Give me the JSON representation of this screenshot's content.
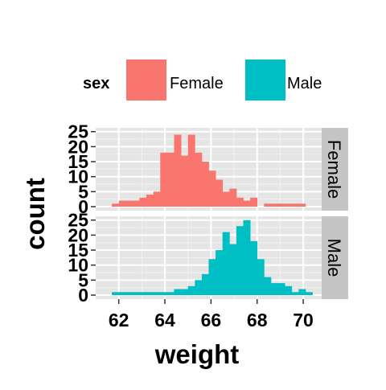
{
  "chart_data": {
    "type": "bar",
    "subtype": "histogram-faceted",
    "title": "",
    "xlabel": "weight",
    "ylabel": "count",
    "xlim": [
      61.0,
      70.8
    ],
    "ylim": [
      0,
      26
    ],
    "x_ticks": [
      62,
      64,
      66,
      68,
      70
    ],
    "y_ticks": [
      0,
      5,
      10,
      15,
      20,
      25
    ],
    "bin_width": 0.3,
    "grid": true,
    "legend": {
      "title": "sex",
      "position": "top",
      "entries": [
        {
          "label": "Female",
          "color": "#F8766D"
        },
        {
          "label": "Male",
          "color": "#00BFC4"
        }
      ]
    },
    "facets": [
      {
        "strip_label": "Female",
        "series": "Female",
        "color": "#F8766D",
        "bins": [
          {
            "x0": 61.7,
            "x1": 62.0,
            "count": 1
          },
          {
            "x0": 62.0,
            "x1": 62.3,
            "count": 2
          },
          {
            "x0": 62.3,
            "x1": 62.6,
            "count": 2
          },
          {
            "x0": 62.6,
            "x1": 62.9,
            "count": 2
          },
          {
            "x0": 62.9,
            "x1": 63.2,
            "count": 3
          },
          {
            "x0": 63.2,
            "x1": 63.5,
            "count": 4
          },
          {
            "x0": 63.5,
            "x1": 63.8,
            "count": 5
          },
          {
            "x0": 63.8,
            "x1": 64.1,
            "count": 18
          },
          {
            "x0": 64.1,
            "x1": 64.4,
            "count": 18
          },
          {
            "x0": 64.4,
            "x1": 64.7,
            "count": 24
          },
          {
            "x0": 64.7,
            "x1": 65.0,
            "count": 17
          },
          {
            "x0": 65.0,
            "x1": 65.3,
            "count": 24
          },
          {
            "x0": 65.3,
            "x1": 65.6,
            "count": 18
          },
          {
            "x0": 65.6,
            "x1": 65.9,
            "count": 15
          },
          {
            "x0": 65.9,
            "x1": 66.2,
            "count": 12
          },
          {
            "x0": 66.2,
            "x1": 66.5,
            "count": 9
          },
          {
            "x0": 66.5,
            "x1": 66.8,
            "count": 5
          },
          {
            "x0": 66.8,
            "x1": 67.1,
            "count": 6
          },
          {
            "x0": 67.1,
            "x1": 67.4,
            "count": 3
          },
          {
            "x0": 67.4,
            "x1": 67.7,
            "count": 2
          },
          {
            "x0": 67.7,
            "x1": 68.0,
            "count": 3
          },
          {
            "x0": 68.0,
            "x1": 68.3,
            "count": 0
          },
          {
            "x0": 68.3,
            "x1": 68.6,
            "count": 1
          },
          {
            "x0": 68.6,
            "x1": 68.9,
            "count": 1
          },
          {
            "x0": 68.9,
            "x1": 69.2,
            "count": 1
          },
          {
            "x0": 69.2,
            "x1": 69.5,
            "count": 1
          },
          {
            "x0": 69.5,
            "x1": 69.8,
            "count": 1
          },
          {
            "x0": 69.8,
            "x1": 70.1,
            "count": 1
          }
        ]
      },
      {
        "strip_label": "Male",
        "series": "Male",
        "color": "#00BFC4",
        "bins": [
          {
            "x0": 61.7,
            "x1": 62.0,
            "count": 1
          },
          {
            "x0": 62.0,
            "x1": 62.3,
            "count": 1
          },
          {
            "x0": 62.3,
            "x1": 62.6,
            "count": 1
          },
          {
            "x0": 62.6,
            "x1": 62.9,
            "count": 1
          },
          {
            "x0": 62.9,
            "x1": 63.2,
            "count": 1
          },
          {
            "x0": 63.2,
            "x1": 63.5,
            "count": 1
          },
          {
            "x0": 63.5,
            "x1": 63.8,
            "count": 1
          },
          {
            "x0": 63.8,
            "x1": 64.1,
            "count": 1
          },
          {
            "x0": 64.1,
            "x1": 64.4,
            "count": 1
          },
          {
            "x0": 64.4,
            "x1": 64.7,
            "count": 2
          },
          {
            "x0": 64.7,
            "x1": 65.0,
            "count": 2
          },
          {
            "x0": 65.0,
            "x1": 65.3,
            "count": 3
          },
          {
            "x0": 65.3,
            "x1": 65.6,
            "count": 5
          },
          {
            "x0": 65.6,
            "x1": 65.9,
            "count": 7
          },
          {
            "x0": 65.9,
            "x1": 66.2,
            "count": 12
          },
          {
            "x0": 66.2,
            "x1": 66.5,
            "count": 15
          },
          {
            "x0": 66.5,
            "x1": 66.8,
            "count": 21
          },
          {
            "x0": 66.8,
            "x1": 67.1,
            "count": 17
          },
          {
            "x0": 67.1,
            "x1": 67.4,
            "count": 23
          },
          {
            "x0": 67.4,
            "x1": 67.7,
            "count": 25
          },
          {
            "x0": 67.7,
            "x1": 68.0,
            "count": 18
          },
          {
            "x0": 68.0,
            "x1": 68.3,
            "count": 12
          },
          {
            "x0": 68.3,
            "x1": 68.6,
            "count": 6
          },
          {
            "x0": 68.6,
            "x1": 68.9,
            "count": 4
          },
          {
            "x0": 68.9,
            "x1": 69.2,
            "count": 4
          },
          {
            "x0": 69.2,
            "x1": 69.5,
            "count": 3
          },
          {
            "x0": 69.5,
            "x1": 69.8,
            "count": 1
          },
          {
            "x0": 69.8,
            "x1": 70.1,
            "count": 2
          },
          {
            "x0": 70.1,
            "x1": 70.4,
            "count": 1
          }
        ]
      }
    ]
  },
  "colors": {
    "panel_background": "#E5E5E5",
    "grid_major": "#FFFFFF",
    "grid_minor": "#F2F2F2",
    "strip_background": "#C5C5C5",
    "axis_text": "#000000"
  }
}
